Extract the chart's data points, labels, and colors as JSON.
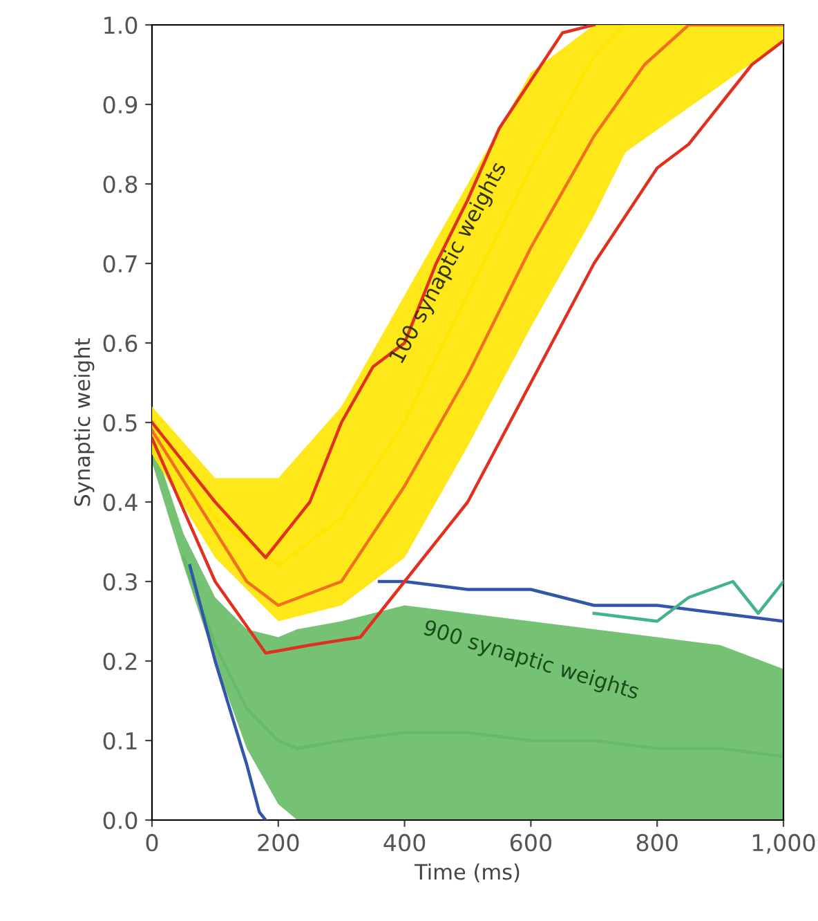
{
  "chart_data": {
    "type": "line",
    "xlabel": "Time (ms)",
    "ylabel": "Synaptic weight",
    "xlim": [
      0,
      1000
    ],
    "ylim": [
      0,
      1.0
    ],
    "xticks": [
      0,
      200,
      400,
      600,
      800,
      {
        "value": 1000,
        "label": "1,000"
      }
    ],
    "yticks": [
      {
        "value": 0,
        "label": "0.0"
      },
      0.1,
      0.2,
      0.3,
      0.4,
      0.5,
      0.6,
      0.7,
      0.8,
      0.9,
      {
        "value": 1.0,
        "label": "1.0"
      }
    ],
    "annotations": [
      "100 synaptic weights",
      "900 synaptic weights"
    ],
    "grid": false,
    "legend": false,
    "marker": "none",
    "line_style": "solid",
    "series": [
      {
        "color": "#66bb66",
        "x": [
          0,
          50,
          100,
          150,
          200,
          230,
          300,
          400,
          500,
          600,
          700,
          800,
          900,
          1000
        ],
        "values": [
          null,
          0.33,
          0.22,
          0.14,
          0.1,
          0.09,
          0.1,
          0.11,
          0.11,
          0.1,
          0.1,
          0.09,
          0.09,
          0.08
        ],
        "lower": [
          0.45,
          0.32,
          0.2,
          0.09,
          0.02,
          0,
          0,
          0,
          0,
          0,
          0,
          0,
          0,
          0
        ],
        "upper": [
          0.48,
          0.36,
          0.28,
          0.24,
          0.23,
          0.24,
          0.25,
          0.27,
          0.26,
          0.25,
          0.24,
          0.23,
          0.22,
          0.19
        ]
      },
      {
        "color": "#3355aa",
        "x": [
          360,
          400,
          500,
          600,
          700,
          800,
          900,
          1000
        ],
        "values": [
          0.3,
          0.3,
          0.29,
          0.29,
          0.27,
          0.27,
          0.26,
          0.25
        ]
      },
      {
        "color": "#3355aa",
        "x": [
          60,
          100,
          150,
          170,
          180
        ],
        "values": [
          0.32,
          0.2,
          0.07,
          0.01,
          0
        ]
      },
      {
        "color": "#44b38a",
        "x": [
          700,
          800,
          850,
          920,
          960,
          1000
        ],
        "values": [
          0.26,
          0.25,
          0.28,
          0.3,
          0.26,
          0.3
        ]
      },
      {
        "color": "#ffe600",
        "x": [
          0,
          100,
          200,
          300,
          400,
          500,
          600,
          700,
          750,
          1000
        ],
        "values": [
          0.5,
          0.38,
          0.32,
          0.38,
          0.5,
          0.66,
          0.82,
          0.96,
          1.0,
          1.0
        ],
        "lower": [
          0.46,
          0.33,
          0.25,
          0.27,
          0.33,
          0.47,
          0.62,
          0.76,
          0.84,
          0.98
        ],
        "upper": [
          0.52,
          0.43,
          0.43,
          0.52,
          0.66,
          0.8,
          0.94,
          1.0,
          1.0,
          1.0
        ]
      },
      {
        "color": "#f07020",
        "x": [
          0,
          150,
          200,
          300,
          400,
          500,
          600,
          700,
          780,
          850,
          1000
        ],
        "values": [
          0.49,
          0.3,
          0.27,
          0.3,
          0.42,
          0.56,
          0.72,
          0.86,
          0.95,
          1.0,
          1.0
        ]
      },
      {
        "color": "#e03020",
        "x": [
          0,
          100,
          180,
          250,
          300,
          350,
          400,
          450,
          500,
          550,
          600,
          650,
          700
        ],
        "values": [
          0.5,
          0.4,
          0.33,
          0.4,
          0.5,
          0.57,
          0.6,
          0.7,
          0.78,
          0.87,
          0.93,
          0.99,
          1.0
        ]
      },
      {
        "color": "#e03020",
        "x": [
          0,
          100,
          180,
          250,
          330,
          400,
          500,
          600,
          700,
          800,
          850,
          900,
          950,
          1000
        ],
        "values": [
          0.48,
          0.3,
          0.21,
          0.22,
          0.23,
          0.3,
          0.4,
          0.55,
          0.7,
          0.82,
          0.85,
          0.9,
          0.95,
          0.98
        ]
      }
    ]
  }
}
